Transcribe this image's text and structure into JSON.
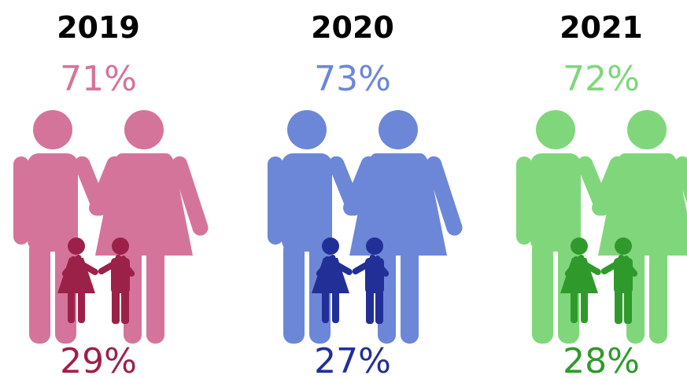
{
  "panels": [
    {
      "year": "2019",
      "adults": "71%",
      "children": "29%",
      "adult_color": "#d5749b",
      "child_color": "#9c2148"
    },
    {
      "year": "2020",
      "adults": "73%",
      "children": "27%",
      "adult_color": "#6c87d7",
      "child_color": "#222f97"
    },
    {
      "year": "2021",
      "adults": "72%",
      "children": "28%",
      "adult_color": "#80d77b",
      "child_color": "#2f9a2b"
    }
  ]
}
